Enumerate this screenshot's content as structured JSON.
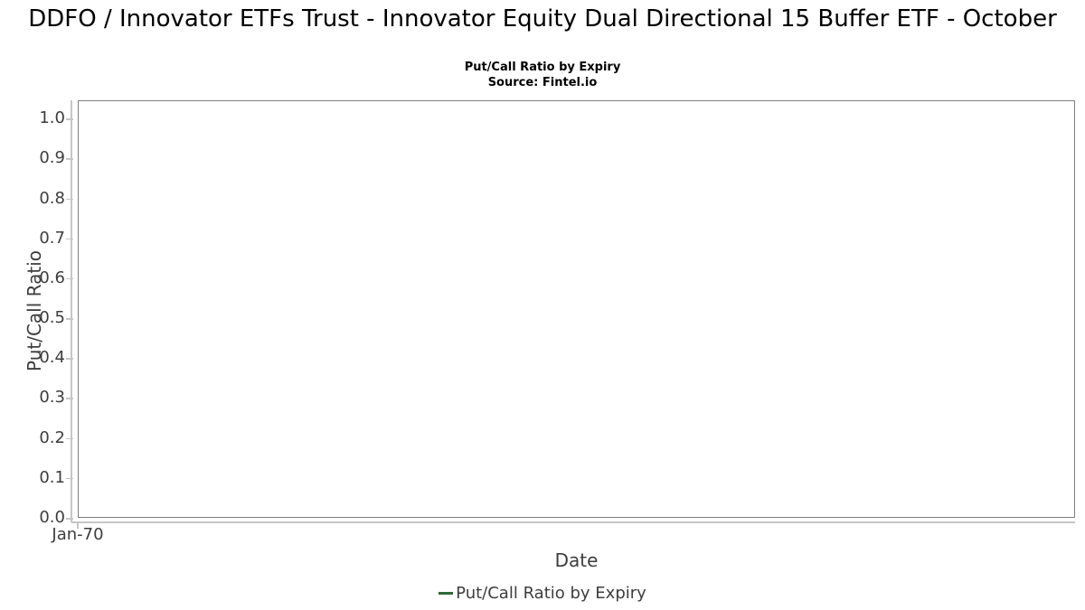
{
  "title": "DDFO / Innovator ETFs Trust - Innovator Equity Dual Directional 15 Buffer ETF - October",
  "subtitle": "Put/Call Ratio by Expiry",
  "source": "Source: Fintel.io",
  "colors": {
    "series_green": "#2d6a3a",
    "plot_border": "#7d7d7d",
    "gridline": "#e7e7e7",
    "axis_line": "#c6c6c6",
    "axis_text": "#3d3d3d",
    "title_text": "#000000"
  },
  "chart_data": {
    "type": "line",
    "title": "DDFO / Innovator ETFs Trust - Innovator Equity Dual Directional 15 Buffer ETF - October",
    "subtitle": "Put/Call Ratio by Expiry",
    "source": "Source: Fintel.io",
    "xlabel": "Date",
    "ylabel": "Put/Call Ratio",
    "x_ticks": [
      "Jan-70"
    ],
    "y_ticks": [
      0.0,
      0.1,
      0.2,
      0.3,
      0.4,
      0.5,
      0.6,
      0.7,
      0.8,
      0.9,
      1.0
    ],
    "y_tick_labels": [
      "0.0",
      "0.1",
      "0.2",
      "0.3",
      "0.4",
      "0.5",
      "0.6",
      "0.7",
      "0.8",
      "0.9",
      "1.0"
    ],
    "ylim": [
      0.0,
      1.046
    ],
    "grid": true,
    "legend_position": "bottom",
    "legend": [
      {
        "label": "Put/Call Ratio by Expiry",
        "color": "#2d6a3a"
      }
    ],
    "series": [
      {
        "name": "Put/Call Ratio by Expiry",
        "color": "#2d6a3a",
        "x": [],
        "values": []
      }
    ]
  }
}
